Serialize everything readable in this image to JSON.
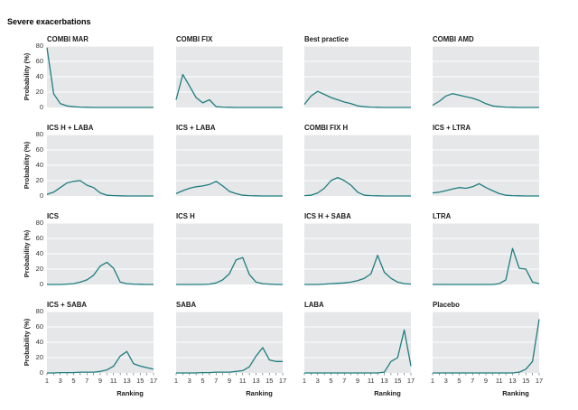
{
  "figure": {
    "title": "Severe exacerbations",
    "ylabel": "Probability (%)",
    "xlabel": "Ranking",
    "yticks": [
      0,
      20,
      40,
      60,
      80
    ],
    "xticks": [
      1,
      3,
      5,
      7,
      9,
      11,
      13,
      15,
      17
    ],
    "line_color": "#1f7d80",
    "panel_color": "#e6e7e8"
  },
  "chart_data": [
    {
      "type": "line",
      "title": "COMBI MAR",
      "x": [
        1,
        2,
        3,
        4,
        5,
        6,
        7,
        8,
        9,
        10,
        11,
        12,
        13,
        14,
        15,
        16,
        17
      ],
      "y": [
        78,
        18,
        5,
        2,
        1,
        0.5,
        0.2,
        0,
        0,
        0,
        0,
        0,
        0,
        0,
        0,
        0,
        0
      ],
      "ylim": [
        0,
        80
      ],
      "xlim": [
        1,
        17
      ]
    },
    {
      "type": "line",
      "title": "COMBI FIX",
      "x": [
        1,
        2,
        3,
        4,
        5,
        6,
        7,
        8,
        9,
        10,
        11,
        12,
        13,
        14,
        15,
        16,
        17
      ],
      "y": [
        10,
        43,
        28,
        13,
        6,
        10,
        1,
        0.5,
        0.2,
        0,
        0,
        0,
        0,
        0,
        0,
        0,
        0
      ],
      "ylim": [
        0,
        80
      ],
      "xlim": [
        1,
        17
      ]
    },
    {
      "type": "line",
      "title": "Best practice",
      "x": [
        1,
        2,
        3,
        4,
        5,
        6,
        7,
        8,
        9,
        10,
        11,
        12,
        13,
        14,
        15,
        16,
        17
      ],
      "y": [
        4,
        15,
        21,
        17,
        13,
        10,
        7,
        5,
        2,
        1,
        0.5,
        0.2,
        0,
        0,
        0,
        0,
        0
      ],
      "ylim": [
        0,
        80
      ],
      "xlim": [
        1,
        17
      ]
    },
    {
      "type": "line",
      "title": "COMBI AMD",
      "x": [
        1,
        2,
        3,
        4,
        5,
        6,
        7,
        8,
        9,
        10,
        11,
        12,
        13,
        14,
        15,
        16,
        17
      ],
      "y": [
        3,
        8,
        15,
        18,
        16,
        14,
        12,
        9,
        5,
        2,
        1,
        0.5,
        0.2,
        0,
        0,
        0,
        0
      ],
      "ylim": [
        0,
        80
      ],
      "xlim": [
        1,
        17
      ]
    },
    {
      "type": "line",
      "title": "ICS H + LABA",
      "x": [
        1,
        2,
        3,
        4,
        5,
        6,
        7,
        8,
        9,
        10,
        11,
        12,
        13,
        14,
        15,
        16,
        17
      ],
      "y": [
        2,
        5,
        11,
        17,
        19,
        20,
        14,
        11,
        4,
        1,
        0.5,
        0.2,
        0,
        0,
        0,
        0,
        0
      ],
      "ylim": [
        0,
        80
      ],
      "xlim": [
        1,
        17
      ]
    },
    {
      "type": "line",
      "title": "ICS + LABA",
      "x": [
        1,
        2,
        3,
        4,
        5,
        6,
        7,
        8,
        9,
        10,
        11,
        12,
        13,
        14,
        15,
        16,
        17
      ],
      "y": [
        3,
        7,
        10,
        12,
        13,
        15,
        19,
        13,
        6,
        3,
        1,
        0.5,
        0.2,
        0,
        0,
        0,
        0
      ],
      "ylim": [
        0,
        80
      ],
      "xlim": [
        1,
        17
      ]
    },
    {
      "type": "line",
      "title": "COMBI FIX H",
      "x": [
        1,
        2,
        3,
        4,
        5,
        6,
        7,
        8,
        9,
        10,
        11,
        12,
        13,
        14,
        15,
        16,
        17
      ],
      "y": [
        0.5,
        1,
        4,
        10,
        20,
        24,
        20,
        14,
        5,
        1,
        0.5,
        0.2,
        0,
        0,
        0,
        0,
        0
      ],
      "ylim": [
        0,
        80
      ],
      "xlim": [
        1,
        17
      ]
    },
    {
      "type": "line",
      "title": "ICS + LTRA",
      "x": [
        1,
        2,
        3,
        4,
        5,
        6,
        7,
        8,
        9,
        10,
        11,
        12,
        13,
        14,
        15,
        16,
        17
      ],
      "y": [
        4,
        5,
        7,
        9,
        11,
        10,
        12,
        16,
        11,
        7,
        3,
        1,
        0.5,
        0.2,
        0,
        0,
        0
      ],
      "ylim": [
        0,
        80
      ],
      "xlim": [
        1,
        17
      ]
    },
    {
      "type": "line",
      "title": "ICS",
      "x": [
        1,
        2,
        3,
        4,
        5,
        6,
        7,
        8,
        9,
        10,
        11,
        12,
        13,
        14,
        15,
        16,
        17
      ],
      "y": [
        0,
        0,
        0,
        0.5,
        1,
        3,
        6,
        12,
        24,
        29,
        21,
        3,
        1,
        0.5,
        0.2,
        0,
        0
      ],
      "ylim": [
        0,
        80
      ],
      "xlim": [
        1,
        17
      ]
    },
    {
      "type": "line",
      "title": "ICS H",
      "x": [
        1,
        2,
        3,
        4,
        5,
        6,
        7,
        8,
        9,
        10,
        11,
        12,
        13,
        14,
        15,
        16,
        17
      ],
      "y": [
        0,
        0,
        0,
        0,
        0,
        0.5,
        2,
        6,
        14,
        32,
        35,
        13,
        3,
        1,
        0.5,
        0,
        0
      ],
      "ylim": [
        0,
        80
      ],
      "xlim": [
        1,
        17
      ]
    },
    {
      "type": "line",
      "title": "ICS H + SABA",
      "x": [
        1,
        2,
        3,
        4,
        5,
        6,
        7,
        8,
        9,
        10,
        11,
        12,
        13,
        14,
        15,
        16,
        17
      ],
      "y": [
        0,
        0,
        0,
        0.5,
        1,
        1.5,
        2,
        3,
        5,
        8,
        14,
        38,
        16,
        8,
        3,
        1,
        0.5
      ],
      "ylim": [
        0,
        80
      ],
      "xlim": [
        1,
        17
      ]
    },
    {
      "type": "line",
      "title": "LTRA",
      "x": [
        1,
        2,
        3,
        4,
        5,
        6,
        7,
        8,
        9,
        10,
        11,
        12,
        13,
        14,
        15,
        16,
        17
      ],
      "y": [
        0,
        0,
        0,
        0,
        0,
        0,
        0,
        0,
        0,
        0,
        1,
        6,
        47,
        21,
        20,
        3,
        1
      ],
      "ylim": [
        0,
        80
      ],
      "xlim": [
        1,
        17
      ]
    },
    {
      "type": "line",
      "title": "ICS + SABA",
      "x": [
        1,
        2,
        3,
        4,
        5,
        6,
        7,
        8,
        9,
        10,
        11,
        12,
        13,
        14,
        15,
        16,
        17
      ],
      "y": [
        0,
        0,
        0.5,
        0.5,
        0.5,
        1,
        1,
        1,
        2,
        4,
        9,
        22,
        28,
        12,
        9,
        7,
        5
      ],
      "ylim": [
        0,
        80
      ],
      "xlim": [
        1,
        17
      ]
    },
    {
      "type": "line",
      "title": "SABA",
      "x": [
        1,
        2,
        3,
        4,
        5,
        6,
        7,
        8,
        9,
        10,
        11,
        12,
        13,
        14,
        15,
        16,
        17
      ],
      "y": [
        0,
        0,
        0,
        0,
        0.5,
        0.5,
        1,
        1,
        1,
        2,
        3,
        8,
        22,
        33,
        17,
        15,
        15
      ],
      "ylim": [
        0,
        80
      ],
      "xlim": [
        1,
        17
      ]
    },
    {
      "type": "line",
      "title": "LABA",
      "x": [
        1,
        2,
        3,
        4,
        5,
        6,
        7,
        8,
        9,
        10,
        11,
        12,
        13,
        14,
        15,
        16,
        17
      ],
      "y": [
        0,
        0,
        0,
        0,
        0,
        0,
        0,
        0,
        0,
        0,
        0,
        0,
        1,
        15,
        20,
        56,
        9
      ],
      "ylim": [
        0,
        80
      ],
      "xlim": [
        1,
        17
      ]
    },
    {
      "type": "line",
      "title": "Placebo",
      "x": [
        1,
        2,
        3,
        4,
        5,
        6,
        7,
        8,
        9,
        10,
        11,
        12,
        13,
        14,
        15,
        16,
        17
      ],
      "y": [
        0,
        0,
        0,
        0,
        0,
        0,
        0,
        0,
        0,
        0,
        0,
        0,
        0,
        1,
        5,
        15,
        70
      ],
      "ylim": [
        0,
        80
      ],
      "xlim": [
        1,
        17
      ]
    }
  ]
}
